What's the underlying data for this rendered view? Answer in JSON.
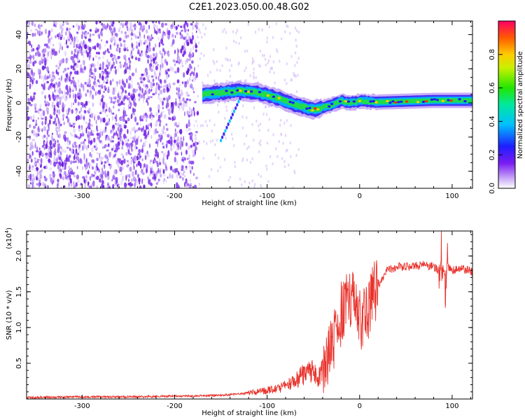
{
  "title": "C2E1.2023.050.00.48.G02",
  "colors": {
    "snr_line": "#e8322b",
    "spectrogram_base": "#7b2cf0"
  },
  "chart_data": [
    {
      "type": "heatmap",
      "xlabel": "Height of straight line (km)",
      "ylabel": "Frequency (Hz)",
      "xlim": [
        -360,
        122
      ],
      "ylim": [
        -50,
        48
      ],
      "x_ticks": [
        -300,
        -200,
        -100,
        0,
        100
      ],
      "x_tick_labels": [
        "-300",
        "-200",
        "-100",
        "0",
        "100"
      ],
      "y_ticks": [
        -40,
        -20,
        0,
        20,
        40
      ],
      "y_tick_labels": [
        "-40",
        "-20",
        "0",
        "20",
        "40"
      ],
      "colorbar": {
        "label": "Normalized spectral amplitude",
        "range": [
          0,
          1
        ],
        "ticks": [
          0.0,
          0.2,
          0.4,
          0.6,
          0.8
        ],
        "tick_labels": [
          "0.0",
          "0.2",
          "0.4",
          "0.6",
          "0.8"
        ]
      },
      "ridge": {
        "height_km": [
          -170,
          -150,
          -130,
          -110,
          -90,
          -70,
          -50,
          -35,
          -20,
          -10,
          0,
          20,
          50,
          80,
          122
        ],
        "frequency_hz": [
          5,
          6,
          7,
          6,
          3,
          -1,
          -4,
          -2,
          1,
          0,
          1,
          0.5,
          1,
          1.5,
          1.5
        ]
      },
      "noise_region_km": [
        -360,
        -175
      ]
    },
    {
      "type": "line",
      "xlabel": "Height of straight line (km)",
      "ylabel": "SNR (10 * v/v)",
      "y_multiplier": "(x10",
      "y_multiplier_exp": "4",
      "xlim": [
        -360,
        122
      ],
      "ylim": [
        0,
        2.35
      ],
      "x_ticks": [
        -300,
        -200,
        -100,
        0,
        100
      ],
      "x_tick_labels": [
        "-300",
        "-200",
        "-100",
        "0",
        "100"
      ],
      "y_ticks": [
        0.5,
        1.0,
        1.5,
        2.0
      ],
      "y_tick_labels": [
        "0.5",
        "1.0",
        "1.5",
        "2.0"
      ],
      "series": [
        {
          "color": "#e8322b",
          "x": [
            -360,
            -300,
            -250,
            -200,
            -150,
            -130,
            -110,
            -90,
            -80,
            -70,
            -60,
            -55,
            -50,
            -45,
            -40,
            -35,
            -30,
            -25,
            -20,
            -15,
            -10,
            -5,
            0,
            5,
            10,
            15,
            20,
            25,
            30,
            40,
            50,
            60,
            70,
            80,
            85,
            90,
            92,
            95,
            100,
            110,
            122
          ],
          "values": [
            0.02,
            0.03,
            0.03,
            0.04,
            0.05,
            0.07,
            0.1,
            0.14,
            0.18,
            0.25,
            0.35,
            0.45,
            0.35,
            0.3,
            0.4,
            0.55,
            0.7,
            0.9,
            1.2,
            1.35,
            1.45,
            1.3,
            1.15,
            1.1,
            1.25,
            1.45,
            1.6,
            1.7,
            1.8,
            1.85,
            1.85,
            1.87,
            1.88,
            1.85,
            1.8,
            1.9,
            1.7,
            1.85,
            1.8,
            1.82,
            1.78
          ]
        }
      ]
    }
  ]
}
